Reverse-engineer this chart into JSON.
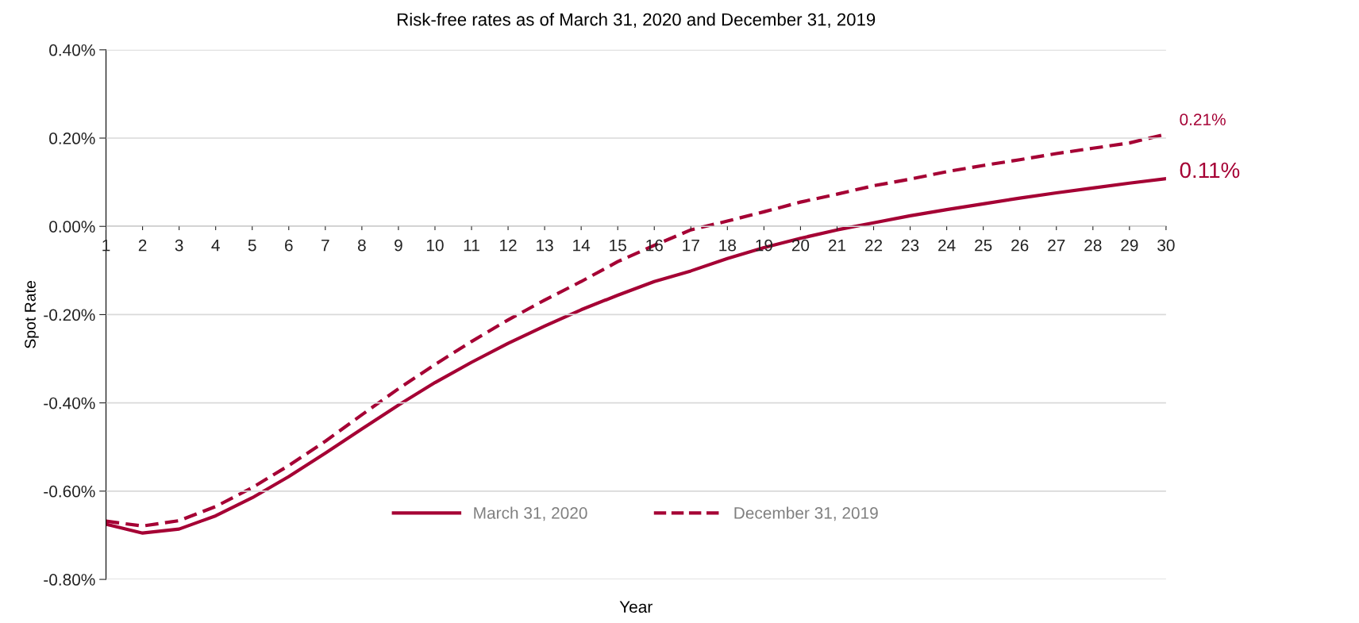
{
  "chart_data": {
    "type": "line",
    "title": "Risk-free rates as of March 31, 2020 and December 31, 2019",
    "xlabel": "Year",
    "ylabel": "Spot Rate",
    "x": [
      1,
      2,
      3,
      4,
      5,
      6,
      7,
      8,
      9,
      10,
      11,
      12,
      13,
      14,
      15,
      16,
      17,
      18,
      19,
      20,
      21,
      22,
      23,
      24,
      25,
      26,
      27,
      28,
      29,
      30
    ],
    "series": [
      {
        "name": "March 31, 2020",
        "color": "#a50034",
        "line_style": "solid",
        "values": [
          -0.675,
          -0.695,
          -0.686,
          -0.656,
          -0.615,
          -0.567,
          -0.514,
          -0.459,
          -0.405,
          -0.354,
          -0.308,
          -0.265,
          -0.226,
          -0.189,
          -0.156,
          -0.125,
          -0.101,
          -0.073,
          -0.048,
          -0.027,
          -0.008,
          0.008,
          0.024,
          0.038,
          0.051,
          0.064,
          0.076,
          0.087,
          0.098,
          0.108
        ]
      },
      {
        "name": "December 31, 2019",
        "color": "#a50034",
        "line_style": "dashed",
        "values": [
          -0.668,
          -0.679,
          -0.667,
          -0.635,
          -0.592,
          -0.542,
          -0.487,
          -0.427,
          -0.368,
          -0.313,
          -0.261,
          -0.212,
          -0.167,
          -0.125,
          -0.08,
          -0.043,
          -0.008,
          0.012,
          0.033,
          0.055,
          0.073,
          0.092,
          0.107,
          0.124,
          0.138,
          0.151,
          0.165,
          0.177,
          0.189,
          0.209
        ]
      }
    ],
    "annotations": [
      {
        "text": "0.11%",
        "x": 30,
        "y": 0.108
      },
      {
        "text": "0.21%",
        "x": 30,
        "y": 0.209
      }
    ],
    "xlim": [
      1,
      30
    ],
    "xticks": [
      1,
      2,
      3,
      4,
      5,
      6,
      7,
      8,
      9,
      10,
      11,
      12,
      13,
      14,
      15,
      16,
      17,
      18,
      19,
      20,
      21,
      22,
      23,
      24,
      25,
      26,
      27,
      28,
      29,
      30
    ],
    "ylim": [
      -0.8,
      0.4
    ],
    "yticks": [
      {
        "value": -0.8,
        "label": "-0.80%"
      },
      {
        "value": -0.6,
        "label": "-0.60%"
      },
      {
        "value": -0.4,
        "label": "-0.40%"
      },
      {
        "value": -0.2,
        "label": "-0.20%"
      },
      {
        "value": 0,
        "label": "0.00%"
      },
      {
        "value": 0.2,
        "label": "0.20%"
      },
      {
        "value": 0.4,
        "label": "0.40%"
      }
    ],
    "grid": "y",
    "legend": "bottom",
    "marker": "none"
  }
}
